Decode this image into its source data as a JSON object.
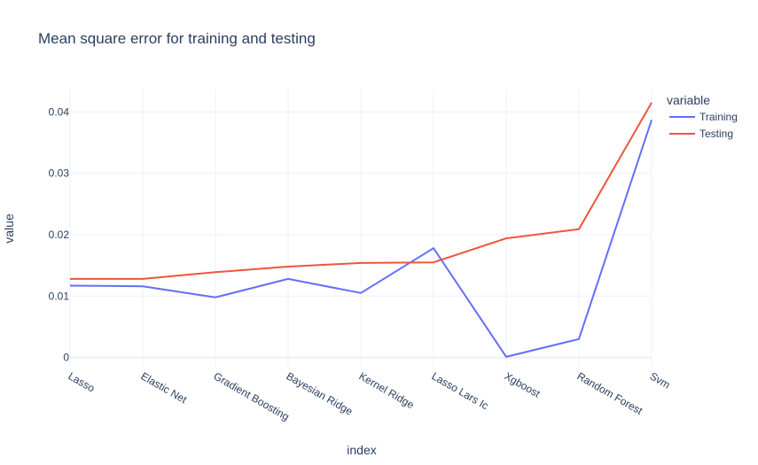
{
  "chart_data": {
    "type": "line",
    "title": "Mean square error for training and testing",
    "xlabel": "index",
    "ylabel": "value",
    "categories": [
      "Lasso",
      "Elastic Net",
      "Gradient Boosting",
      "Bayesian Ridge",
      "Kernel Ridge",
      "Lasso Lars Ic",
      "Xgboost",
      "Random Forest",
      "Svm"
    ],
    "ylim": [
      -0.0015,
      0.0438
    ],
    "yticks": [
      0,
      0.01,
      0.02,
      0.03,
      0.04
    ],
    "ytick_labels": [
      "0",
      "0.01",
      "0.02",
      "0.03",
      "0.04"
    ],
    "grid": true,
    "legend": {
      "title": "variable",
      "position": "top-right"
    },
    "series": [
      {
        "name": "Training",
        "color": "#636efa",
        "values": [
          0.0117,
          0.0116,
          0.0098,
          0.0128,
          0.0105,
          0.0178,
          0.0001,
          0.003,
          0.0387
        ]
      },
      {
        "name": "Testing",
        "color": "#ef553b",
        "values": [
          0.0128,
          0.0128,
          0.0139,
          0.0148,
          0.0154,
          0.0155,
          0.0194,
          0.0209,
          0.0415
        ]
      }
    ]
  }
}
